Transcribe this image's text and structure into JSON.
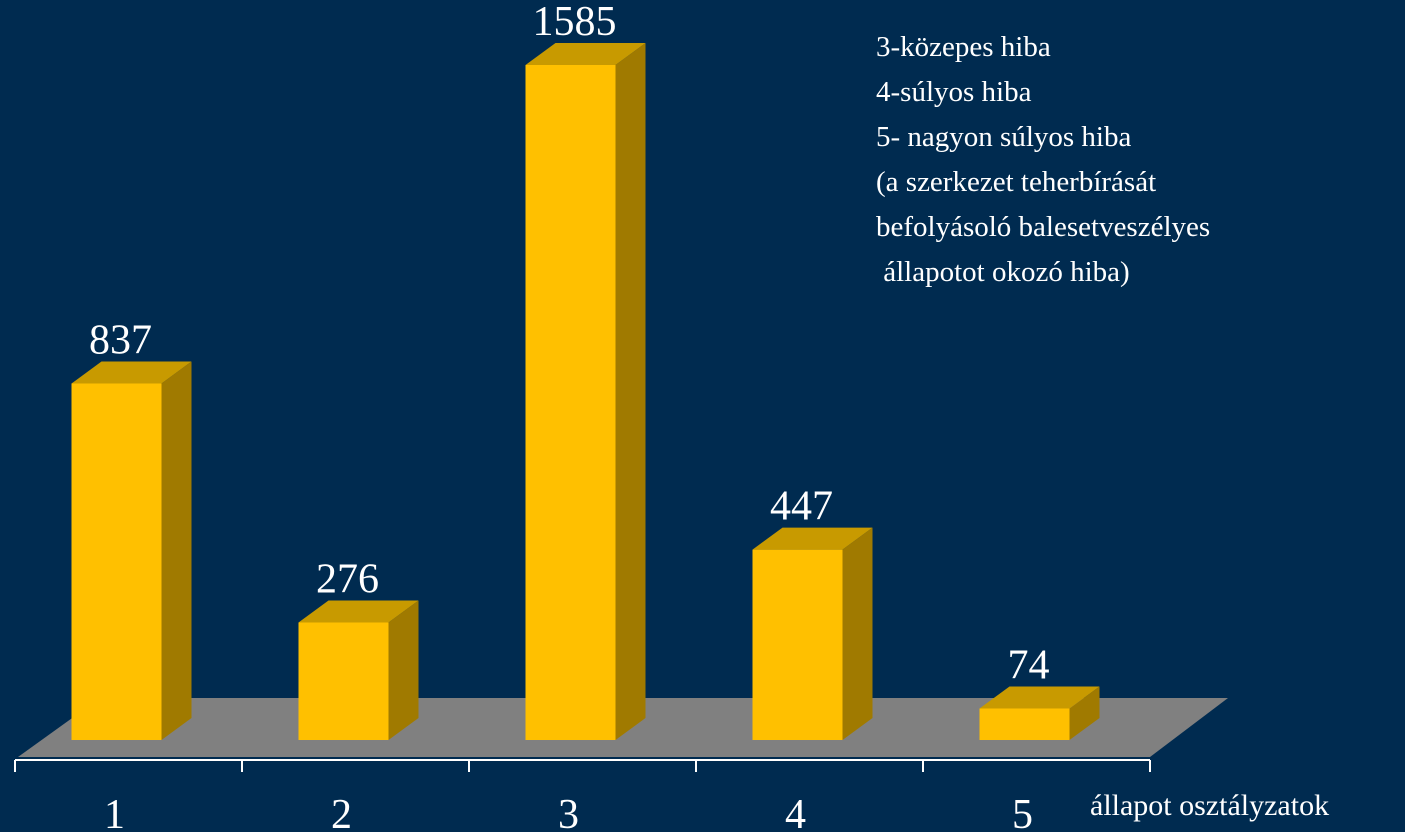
{
  "chart_data": {
    "type": "bar",
    "categories": [
      "1",
      "2",
      "3",
      "4",
      "5"
    ],
    "values": [
      837,
      276,
      1585,
      447,
      74
    ],
    "color": "#ffc000",
    "xlabel": "állapot osztályzatok",
    "annotations": [
      "3-közepes hiba",
      "4-súlyos hiba",
      "5- nagyon súlyos hiba",
      "(a szerkezet teherbírását",
      "befolyásoló balesetveszélyes",
      " állapotot okozó hiba)"
    ]
  }
}
